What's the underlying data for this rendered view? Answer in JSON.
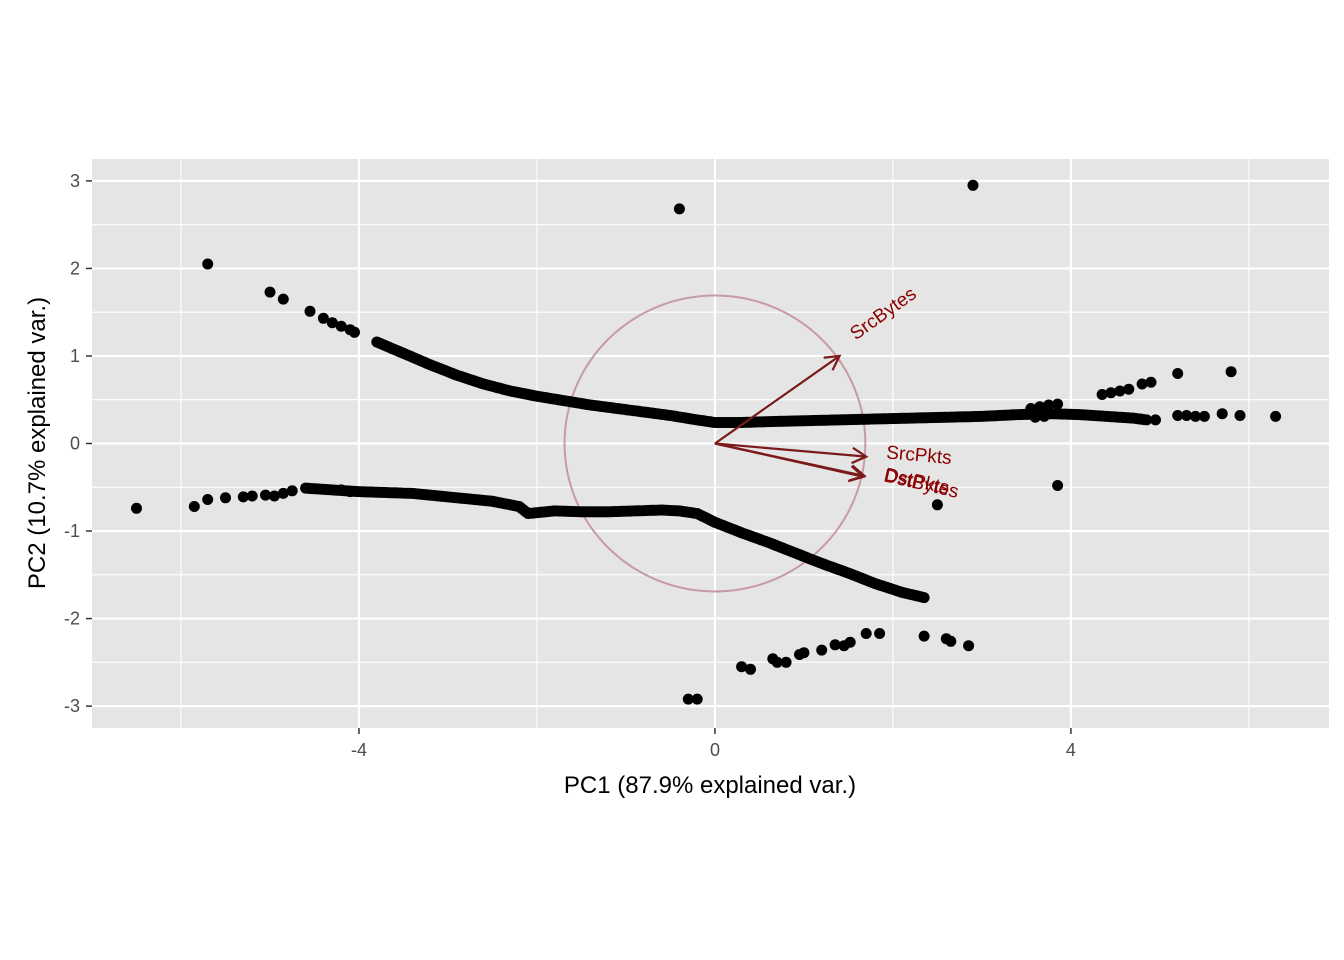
{
  "chart_data": {
    "type": "scatter",
    "subtype": "pca-biplot",
    "title": "",
    "xlabel": "PC1 (87.9% explained var.)",
    "ylabel": "PC2 (10.7% explained var.)",
    "xlim": [
      -7.0,
      6.9
    ],
    "ylim": [
      -3.25,
      3.25
    ],
    "x_ticks": [
      -4,
      0,
      4
    ],
    "x_tick_labels": [
      "-4",
      "0",
      "4"
    ],
    "y_ticks": [
      3,
      2,
      1,
      0,
      -1,
      -2,
      -3
    ],
    "y_tick_labels": [
      "3",
      "2",
      "1",
      "0",
      "-1",
      "-2",
      "-3"
    ],
    "grid": true,
    "background": "#e5e5e5",
    "point_color": "#000000",
    "arrow_color": "#7b1a1a",
    "label_color": "#8b0000",
    "circle_color": "#c79aa4",
    "correlation_circle_radius": 1.69,
    "loadings": [
      {
        "label": "SrcBytes",
        "x": 1.4,
        "y": 1.0
      },
      {
        "label": "SrcPkts",
        "x": 1.7,
        "y": -0.15
      },
      {
        "label": "DstBytes",
        "x": 1.67,
        "y": -0.38
      },
      {
        "label": "DstPkts",
        "x": 1.68,
        "y": -0.37
      }
    ],
    "upper_curve": [
      [
        -3.8,
        1.16
      ],
      [
        -3.5,
        1.03
      ],
      [
        -3.2,
        0.9
      ],
      [
        -2.9,
        0.78
      ],
      [
        -2.6,
        0.68
      ],
      [
        -2.3,
        0.6
      ],
      [
        -2.0,
        0.54
      ],
      [
        -1.7,
        0.49
      ],
      [
        -1.4,
        0.44
      ],
      [
        -1.1,
        0.4
      ],
      [
        -0.8,
        0.36
      ],
      [
        -0.5,
        0.32
      ],
      [
        -0.2,
        0.27
      ],
      [
        0.0,
        0.24
      ],
      [
        0.3,
        0.24
      ],
      [
        0.6,
        0.25
      ],
      [
        1.0,
        0.26
      ],
      [
        1.4,
        0.27
      ],
      [
        1.8,
        0.28
      ],
      [
        2.2,
        0.29
      ],
      [
        2.6,
        0.3
      ],
      [
        3.0,
        0.31
      ],
      [
        3.4,
        0.33
      ],
      [
        3.8,
        0.34
      ],
      [
        4.1,
        0.33
      ],
      [
        4.4,
        0.31
      ],
      [
        4.7,
        0.29
      ],
      [
        4.85,
        0.27
      ]
    ],
    "lower_curve": [
      [
        -4.6,
        -0.51
      ],
      [
        -4.3,
        -0.53
      ],
      [
        -4.0,
        -0.55
      ],
      [
        -3.7,
        -0.56
      ],
      [
        -3.4,
        -0.57
      ],
      [
        -3.1,
        -0.6
      ],
      [
        -2.8,
        -0.63
      ],
      [
        -2.5,
        -0.66
      ],
      [
        -2.2,
        -0.72
      ],
      [
        -2.1,
        -0.8
      ],
      [
        -1.8,
        -0.77
      ],
      [
        -1.5,
        -0.78
      ],
      [
        -1.2,
        -0.78
      ],
      [
        -0.9,
        -0.77
      ],
      [
        -0.6,
        -0.76
      ],
      [
        -0.4,
        -0.77
      ],
      [
        -0.2,
        -0.8
      ],
      [
        0.0,
        -0.9
      ],
      [
        0.3,
        -1.02
      ],
      [
        0.6,
        -1.13
      ],
      [
        0.9,
        -1.25
      ],
      [
        1.2,
        -1.37
      ],
      [
        1.5,
        -1.48
      ],
      [
        1.8,
        -1.6
      ],
      [
        2.1,
        -1.7
      ],
      [
        2.35,
        -1.76
      ]
    ],
    "points": [
      [
        -6.5,
        -0.74
      ],
      [
        -5.7,
        2.05
      ],
      [
        -5.85,
        -0.72
      ],
      [
        -5.7,
        -0.64
      ],
      [
        -5.5,
        -0.62
      ],
      [
        -5.3,
        -0.61
      ],
      [
        -5.2,
        -0.6
      ],
      [
        -5.05,
        -0.59
      ],
      [
        -4.95,
        -0.6
      ],
      [
        -4.85,
        -0.57
      ],
      [
        -4.75,
        -0.54
      ],
      [
        -4.2,
        -0.53
      ],
      [
        -4.1,
        -0.55
      ],
      [
        -5.0,
        1.73
      ],
      [
        -4.85,
        1.65
      ],
      [
        -4.55,
        1.51
      ],
      [
        -4.4,
        1.43
      ],
      [
        -4.3,
        1.38
      ],
      [
        -4.2,
        1.34
      ],
      [
        -4.1,
        1.3
      ],
      [
        -4.05,
        1.27
      ],
      [
        -0.4,
        2.68
      ],
      [
        2.9,
        2.95
      ],
      [
        3.85,
        -0.48
      ],
      [
        2.5,
        -0.7
      ],
      [
        -0.3,
        -2.92
      ],
      [
        -0.2,
        -2.92
      ],
      [
        0.3,
        -2.55
      ],
      [
        0.4,
        -2.58
      ],
      [
        0.65,
        -2.46
      ],
      [
        0.7,
        -2.5
      ],
      [
        0.8,
        -2.5
      ],
      [
        0.95,
        -2.41
      ],
      [
        1.0,
        -2.39
      ],
      [
        1.2,
        -2.36
      ],
      [
        1.35,
        -2.3
      ],
      [
        1.45,
        -2.31
      ],
      [
        1.52,
        -2.27
      ],
      [
        1.7,
        -2.17
      ],
      [
        1.85,
        -2.17
      ],
      [
        2.35,
        -2.2
      ],
      [
        2.6,
        -2.23
      ],
      [
        2.65,
        -2.26
      ],
      [
        2.85,
        -2.31
      ],
      [
        4.35,
        0.56
      ],
      [
        4.45,
        0.58
      ],
      [
        4.55,
        0.6
      ],
      [
        4.65,
        0.62
      ],
      [
        4.8,
        0.68
      ],
      [
        4.9,
        0.7
      ],
      [
        5.2,
        0.8
      ],
      [
        5.8,
        0.82
      ],
      [
        5.2,
        0.32
      ],
      [
        5.3,
        0.32
      ],
      [
        5.4,
        0.31
      ],
      [
        5.5,
        0.31
      ],
      [
        5.7,
        0.34
      ],
      [
        5.9,
        0.32
      ],
      [
        6.3,
        0.31
      ],
      [
        4.95,
        0.27
      ],
      [
        3.55,
        0.4
      ],
      [
        3.65,
        0.42
      ],
      [
        3.75,
        0.44
      ],
      [
        3.85,
        0.45
      ],
      [
        3.7,
        0.31
      ],
      [
        3.6,
        0.3
      ]
    ]
  }
}
